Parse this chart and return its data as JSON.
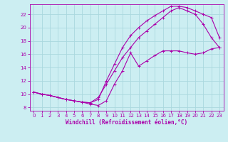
{
  "background_color": "#cceef2",
  "grid_color": "#aad8de",
  "line_color": "#aa00aa",
  "xlim": [
    -0.5,
    23.5
  ],
  "ylim": [
    7.5,
    23.5
  ],
  "xlabel": "Windchill (Refroidissement éolien,°C)",
  "xticks": [
    0,
    1,
    2,
    3,
    4,
    5,
    6,
    7,
    8,
    9,
    10,
    11,
    12,
    13,
    14,
    15,
    16,
    17,
    18,
    19,
    20,
    21,
    22,
    23
  ],
  "yticks": [
    8,
    10,
    12,
    14,
    16,
    18,
    20,
    22
  ],
  "curve1_x": [
    0,
    1,
    2,
    3,
    4,
    5,
    6,
    7,
    8,
    9,
    10,
    11,
    12,
    13,
    14,
    15,
    16,
    17,
    18,
    19,
    20,
    21,
    22,
    23
  ],
  "curve1_y": [
    10.3,
    10.0,
    9.8,
    9.5,
    9.2,
    9.0,
    8.8,
    8.7,
    9.5,
    11.5,
    13.5,
    15.5,
    17.0,
    18.5,
    19.5,
    20.5,
    21.5,
    22.5,
    23.0,
    22.5,
    22.0,
    20.5,
    18.5,
    17.0
  ],
  "curve2_x": [
    0,
    1,
    2,
    3,
    4,
    5,
    6,
    7,
    8,
    9,
    10,
    11,
    12,
    13,
    14,
    15,
    16,
    17,
    18,
    19,
    20,
    21,
    22,
    23
  ],
  "curve2_y": [
    10.3,
    10.0,
    9.8,
    9.5,
    9.2,
    9.0,
    8.8,
    8.7,
    9.2,
    12.0,
    14.5,
    17.0,
    18.8,
    20.0,
    21.0,
    21.8,
    22.5,
    23.2,
    23.2,
    23.0,
    22.5,
    22.0,
    21.5,
    18.5
  ],
  "curve3_x": [
    0,
    1,
    2,
    3,
    4,
    5,
    6,
    7,
    8,
    9,
    10,
    11,
    12,
    13,
    14,
    15,
    16,
    17,
    18,
    19,
    20,
    21,
    22,
    23
  ],
  "curve3_y": [
    10.3,
    10.0,
    9.8,
    9.5,
    9.2,
    9.0,
    8.8,
    8.5,
    8.3,
    9.0,
    11.5,
    13.5,
    16.2,
    14.2,
    15.0,
    15.8,
    16.5,
    16.5,
    16.5,
    16.2,
    16.0,
    16.2,
    16.8,
    17.0
  ]
}
